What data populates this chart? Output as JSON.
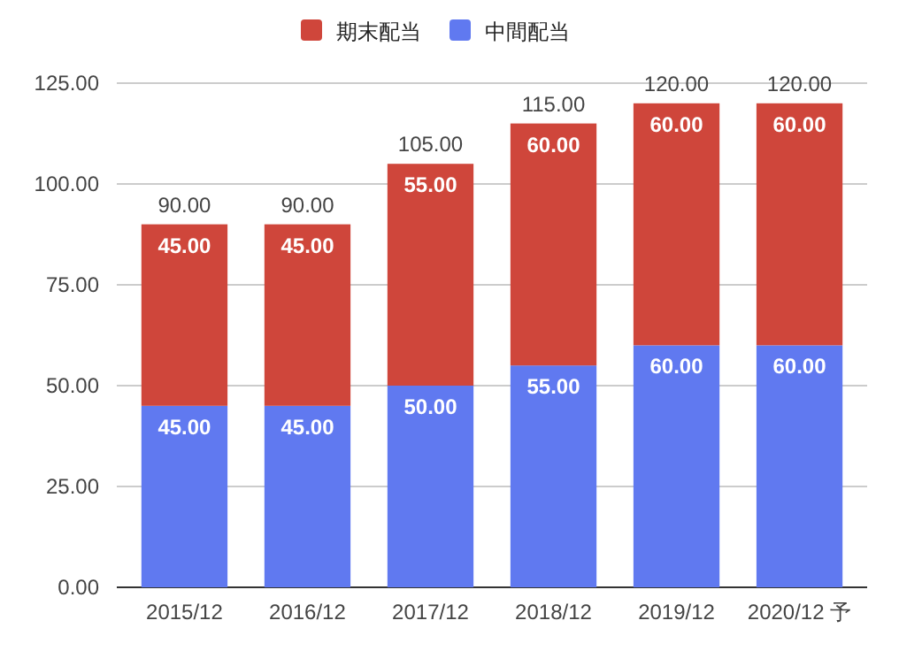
{
  "chart_data": {
    "type": "bar",
    "stacked": true,
    "categories": [
      "2015/12",
      "2016/12",
      "2017/12",
      "2018/12",
      "2019/12",
      "2020/12 予"
    ],
    "series": [
      {
        "name": "中間配当",
        "color": "#6079f0",
        "values": [
          45,
          45,
          50,
          55,
          60,
          60
        ],
        "value_labels": [
          "45.00",
          "45.00",
          "50.00",
          "55.00",
          "60.00",
          "60.00"
        ]
      },
      {
        "name": "期末配当",
        "color": "#cf463b",
        "values": [
          45,
          45,
          55,
          60,
          60,
          60
        ],
        "value_labels": [
          "45.00",
          "45.00",
          "55.00",
          "60.00",
          "60.00",
          "60.00"
        ]
      }
    ],
    "totals": [
      "90.00",
      "90.00",
      "105.00",
      "115.00",
      "120.00",
      "120.00"
    ],
    "ylim": [
      0,
      125
    ],
    "yticks": [
      {
        "value": 0,
        "label": "0.00"
      },
      {
        "value": 25,
        "label": "25.00"
      },
      {
        "value": 50,
        "label": "50.00"
      },
      {
        "value": 75,
        "label": "75.00"
      },
      {
        "value": 100,
        "label": "100.00"
      },
      {
        "value": 125,
        "label": "125.00"
      }
    ],
    "grid": "y",
    "legend": "top"
  }
}
